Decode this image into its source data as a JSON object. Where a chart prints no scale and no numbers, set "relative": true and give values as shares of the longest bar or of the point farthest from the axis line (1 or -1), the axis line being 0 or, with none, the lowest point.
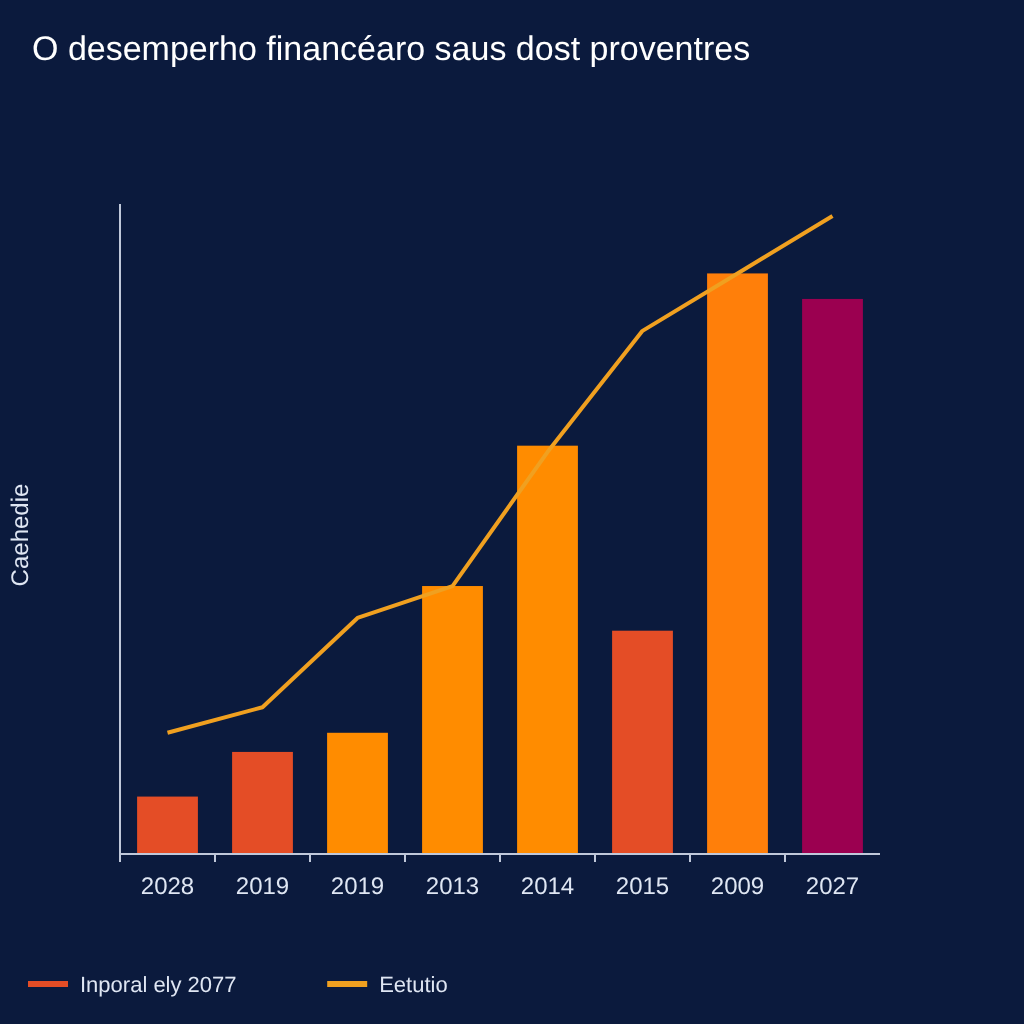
{
  "chart_data": {
    "type": "bar",
    "title": "O desemperho financéaro saus dost proventres",
    "ylabel": "Caehedie",
    "relative": true,
    "categories": [
      "2028",
      "2019",
      "2019",
      "2013",
      "2014",
      "2015",
      "2009",
      "2027"
    ],
    "legend": "bottom left",
    "series": [
      {
        "name": "Inporal ely 2077",
        "color": "#e44d26",
        "colors": [
          "#e44d26",
          "#e44d26",
          "#ff8c00",
          "#ff8c00",
          "#ff8c00",
          "#e44d26",
          "#ff7f0a",
          "#9b0050"
        ],
        "values": [
          0.09,
          0.16,
          0.19,
          0.42,
          0.64,
          0.35,
          0.91,
          0.87
        ]
      },
      {
        "name": "Eetutio",
        "type": "line",
        "color": "#f0a020",
        "values": [
          0.19,
          0.23,
          0.37,
          0.42,
          0.63,
          0.82,
          0.91,
          1
        ]
      }
    ]
  }
}
